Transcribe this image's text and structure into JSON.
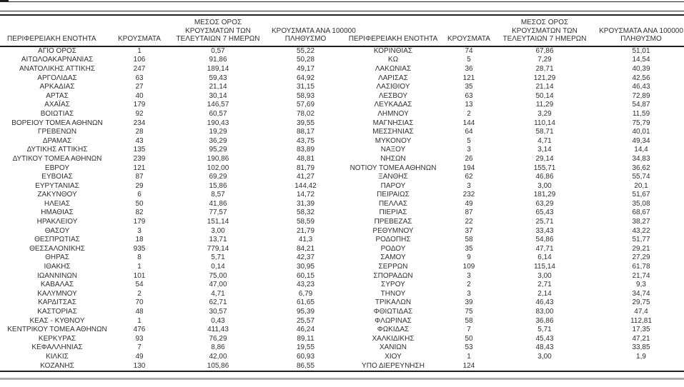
{
  "page": {
    "background": "#ffffff"
  },
  "colors": {
    "text": "#303030",
    "rule": "#1f1f1f",
    "footer_bar": "#adadad"
  },
  "tables": {
    "columns": [
      "region",
      "cases",
      "avg7",
      "per100k"
    ],
    "header_lines": {
      "region": [
        "ΠΕΡΙΦΕΡΕΙΑΚΗ ΕΝΟΤΗΤΑ"
      ],
      "cases": [
        "ΚΡΟΥΣΜΑΤΑ"
      ],
      "avg7": [
        "ΜΕΣΟΣ ΟΡΟΣ",
        "ΚΡΟΥΣΜΑΤΩΝ ΤΩΝ",
        "ΤΕΛΕΥΤΑΙΩΝ 7 ΗΜΕΡΩΝ"
      ],
      "per100k": [
        "ΚΡΟΥΣΜΑΤΑ ΑΝΑ 100000",
        "ΠΛΗΘΥΣΜΟ"
      ]
    },
    "left": {
      "rows": [
        [
          "ΑΓΙΟ ΟΡΟΣ",
          "1",
          "0,57",
          "55,22"
        ],
        [
          "ΑΙΤΩΛΟΑΚΑΡΝΑΝΙΑΣ",
          "106",
          "91,86",
          "50,28"
        ],
        [
          "ΑΝΑΤΟΛΙΚΗΣ ΑΤΤΙΚΗΣ",
          "247",
          "189,14",
          "49,17"
        ],
        [
          "ΑΡΓΟΛΙΔΑΣ",
          "63",
          "59,43",
          "64,92"
        ],
        [
          "ΑΡΚΑΔΙΑΣ",
          "27",
          "21,14",
          "31,15"
        ],
        [
          "ΑΡΤΑΣ",
          "40",
          "30,14",
          "58,93"
        ],
        [
          "ΑΧΑΪΑΣ",
          "179",
          "146,57",
          "57,69"
        ],
        [
          "ΒΟΙΩΤΙΑΣ",
          "92",
          "60,57",
          "78,02"
        ],
        [
          "ΒΟΡΕΙΟΥ ΤΟΜΕΑ ΑΘΗΝΩΝ",
          "234",
          "190,43",
          "39,55"
        ],
        [
          "ΓΡΕΒΕΝΩΝ",
          "28",
          "19,29",
          "88,17"
        ],
        [
          "ΔΡΑΜΑΣ",
          "43",
          "36,29",
          "43,75"
        ],
        [
          "ΔΥΤΙΚΗΣ ΑΤΤΙΚΗΣ",
          "135",
          "95,29",
          "83,89"
        ],
        [
          "ΔΥΤΙΚΟΥ ΤΟΜΕΑ ΑΘΗΝΩΝ",
          "239",
          "190,86",
          "48,81"
        ],
        [
          "ΕΒΡΟΥ",
          "121",
          "102,00",
          "81,79"
        ],
        [
          "ΕΥΒΟΙΑΣ",
          "87",
          "69,29",
          "41,27"
        ],
        [
          "ΕΥΡΥΤΑΝΙΑΣ",
          "29",
          "15,86",
          "144,42"
        ],
        [
          "ΖΑΚΥΝΘΟΥ",
          "6",
          "8,57",
          "14,72"
        ],
        [
          "ΗΛΕΙΑΣ",
          "50",
          "41,86",
          "31,39"
        ],
        [
          "ΗΜΑΘΙΑΣ",
          "82",
          "77,57",
          "58,32"
        ],
        [
          "ΗΡΑΚΛΕΙΟΥ",
          "179",
          "151,14",
          "58,59"
        ],
        [
          "ΘΑΣΟΥ",
          "3",
          "3,00",
          "21,79"
        ],
        [
          "ΘΕΣΠΡΩΤΙΑΣ",
          "18",
          "13,71",
          "41,3"
        ],
        [
          "ΘΕΣΣΑΛΟΝΙΚΗΣ",
          "935",
          "779,14",
          "84,21"
        ],
        [
          "ΘΗΡΑΣ",
          "8",
          "5,71",
          "42,37"
        ],
        [
          "ΙΘΑΚΗΣ",
          "1",
          "0,14",
          "30,95"
        ],
        [
          "ΙΩΑΝΝΙΝΩΝ",
          "101",
          "75,00",
          "60,15"
        ],
        [
          "ΚΑΒΑΛΑΣ",
          "54",
          "47,00",
          "43,23"
        ],
        [
          "ΚΑΛΥΜΝΟΥ",
          "2",
          "4,71",
          "6,79"
        ],
        [
          "ΚΑΡΔΙΤΣΑΣ",
          "70",
          "62,71",
          "61,65"
        ],
        [
          "ΚΑΣΤΟΡΙΑΣ",
          "48",
          "30,57",
          "95,39"
        ],
        [
          "ΚΕΑΣ - ΚΥΘΝΟΥ",
          "1",
          "0,43",
          "25,57"
        ],
        [
          "ΚΕΝΤΡΙΚΟΥ ΤΟΜΕΑ ΑΘΗΝΩΝ",
          "476",
          "411,43",
          "46,24"
        ],
        [
          "ΚΕΡΚΥΡΑΣ",
          "93",
          "76,29",
          "89,11"
        ],
        [
          "ΚΕΦΑΛΛΗΝΙΑΣ",
          "7",
          "8,86",
          "19,55"
        ],
        [
          "ΚΙΛΚΙΣ",
          "49",
          "42,00",
          "60,93"
        ],
        [
          "ΚΟΖΑΝΗΣ",
          "130",
          "105,86",
          "86,55"
        ]
      ]
    },
    "right": {
      "rows": [
        [
          "ΚΟΡΙΝΘΙΑΣ",
          "74",
          "67,86",
          "51,01"
        ],
        [
          "ΚΩ",
          "5",
          "7,29",
          "14,54"
        ],
        [
          "ΛΑΚΩΝΙΑΣ",
          "36",
          "28,71",
          "40,39"
        ],
        [
          "ΛΑΡΙΣΑΣ",
          "121",
          "121,29",
          "42,56"
        ],
        [
          "ΛΑΣΙΘΙΟΥ",
          "35",
          "21,14",
          "46,43"
        ],
        [
          "ΛΕΣΒΟΥ",
          "63",
          "50,14",
          "72,89"
        ],
        [
          "ΛΕΥΚΑΔΑΣ",
          "13",
          "11,29",
          "54,87"
        ],
        [
          "ΛΗΜΝΟΥ",
          "2",
          "3,29",
          "11,59"
        ],
        [
          "ΜΑΓΝΗΣΙΑΣ",
          "144",
          "110,14",
          "75,79"
        ],
        [
          "ΜΕΣΣΗΝΙΑΣ",
          "64",
          "58,71",
          "40,01"
        ],
        [
          "ΜΥΚΟΝΟΥ",
          "5",
          "4,71",
          "49,34"
        ],
        [
          "ΝΑΞΟΥ",
          "3",
          "3,14",
          "14,4"
        ],
        [
          "ΝΗΣΩΝ",
          "26",
          "29,14",
          "34,83"
        ],
        [
          "ΝΟΤΙΟΥ ΤΟΜΕΑ ΑΘΗΝΩΝ",
          "194",
          "155,71",
          "36,62"
        ],
        [
          "ΞΑΝΘΗΣ",
          "62",
          "46,86",
          "55,74"
        ],
        [
          "ΠΑΡΟΥ",
          "3",
          "3,00",
          "20,1"
        ],
        [
          "ΠΕΙΡΑΙΩΣ",
          "232",
          "181,29",
          "51,67"
        ],
        [
          "ΠΕΛΛΑΣ",
          "49",
          "63,29",
          "35,08"
        ],
        [
          "ΠΙΕΡΙΑΣ",
          "87",
          "65,43",
          "68,67"
        ],
        [
          "ΠΡΕΒΕΖΑΣ",
          "22",
          "25,71",
          "38,27"
        ],
        [
          "ΡΕΘΥΜΝΟΥ",
          "37",
          "33,43",
          "43,22"
        ],
        [
          "ΡΟΔΟΠΗΣ",
          "58",
          "54,86",
          "51,77"
        ],
        [
          "ΡΟΔΟΥ",
          "35",
          "47,71",
          "29,21"
        ],
        [
          "ΣΑΜΟΥ",
          "9",
          "6,14",
          "27,29"
        ],
        [
          "ΣΕΡΡΩΝ",
          "109",
          "115,14",
          "61,78"
        ],
        [
          "ΣΠΟΡΑΔΩΝ",
          "3",
          "3,00",
          "21,74"
        ],
        [
          "ΣΥΡΟΥ",
          "2",
          "2,71",
          "9,3"
        ],
        [
          "ΤΗΝΟΥ",
          "3",
          "2,14",
          "34,74"
        ],
        [
          "ΤΡΙΚΑΛΩΝ",
          "39",
          "46,43",
          "29,75"
        ],
        [
          "ΦΘΙΩΤΙΔΑΣ",
          "75",
          "83,00",
          "47,4"
        ],
        [
          "ΦΛΩΡΙΝΑΣ",
          "58",
          "36,86",
          "112,81"
        ],
        [
          "ΦΩΚΙΔΑΣ",
          "7",
          "5,71",
          "17,35"
        ],
        [
          "ΧΑΛΚΙΔΙΚΗΣ",
          "50",
          "45,43",
          "47,21"
        ],
        [
          "ΧΑΝΙΩΝ",
          "53",
          "48,43",
          "33,85"
        ],
        [
          "ΧΙΟΥ",
          "1",
          "3,00",
          "1,9"
        ],
        [
          "ΥΠΟ ΔΙΕΡΕΥΝΗΣΗ",
          "124",
          "",
          ""
        ]
      ]
    }
  }
}
